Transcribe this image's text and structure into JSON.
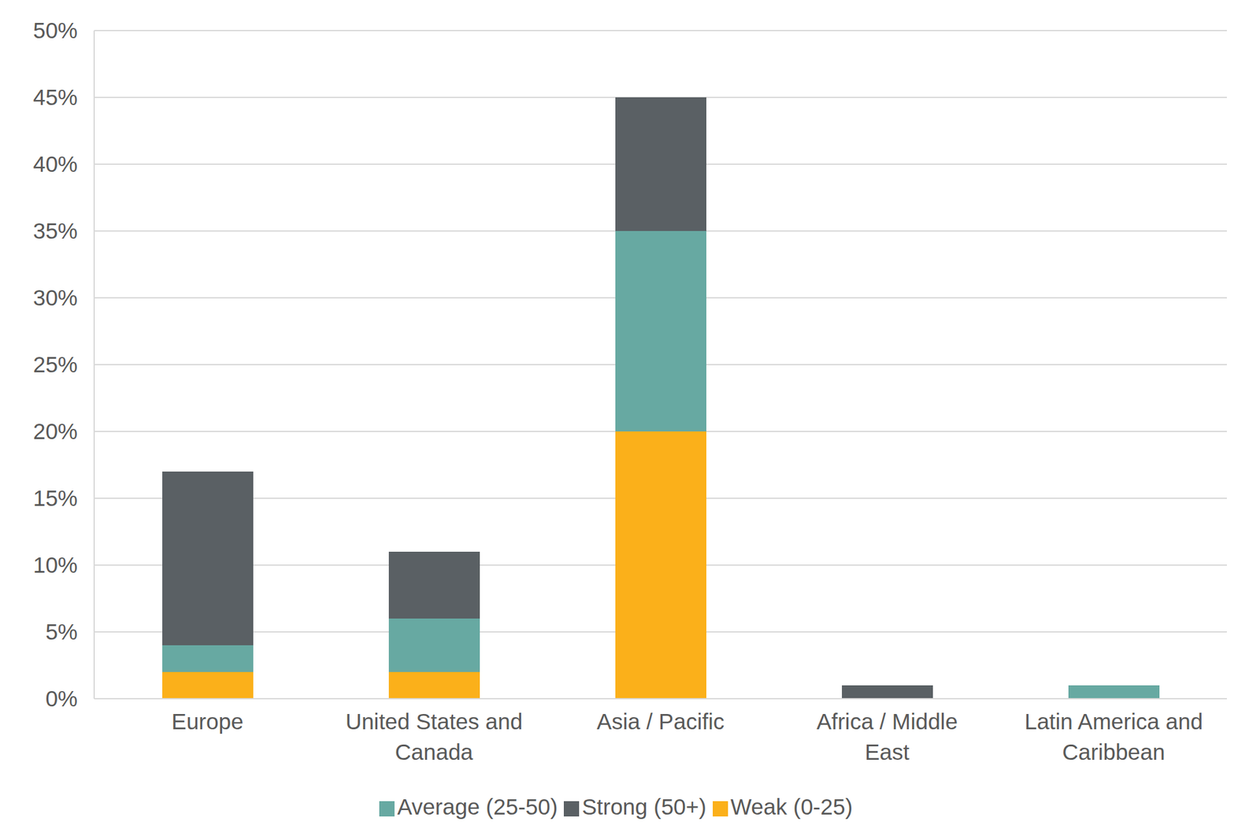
{
  "chart_data": {
    "type": "bar",
    "stacked": true,
    "grid": true,
    "legend": "bottom",
    "categories": [
      "Europe",
      "United States and Canada",
      "Asia / Pacific",
      "Africa / Middle East",
      "Latin America and Caribbean"
    ],
    "series": [
      {
        "name": "Weak (0-25)",
        "color": "#fbb01a",
        "values": [
          2,
          2,
          20,
          0,
          0
        ]
      },
      {
        "name": "Average (25-50)",
        "color": "#67a9a2",
        "values": [
          2,
          4,
          15,
          0,
          1
        ]
      },
      {
        "name": "Strong (50+)",
        "color": "#5a6064",
        "values": [
          13,
          5,
          10,
          1,
          0
        ]
      }
    ],
    "ylim": [
      0,
      50
    ],
    "yticks": [
      {
        "value": 0,
        "label": "0%"
      },
      {
        "value": 5,
        "label": "5%"
      },
      {
        "value": 10,
        "label": "10%"
      },
      {
        "value": 15,
        "label": "15%"
      },
      {
        "value": 20,
        "label": "20%"
      },
      {
        "value": 25,
        "label": "25%"
      },
      {
        "value": 30,
        "label": "30%"
      },
      {
        "value": 35,
        "label": "35%"
      },
      {
        "value": 40,
        "label": "40%"
      },
      {
        "value": 45,
        "label": "45%"
      },
      {
        "value": 50,
        "label": "50%"
      }
    ]
  }
}
